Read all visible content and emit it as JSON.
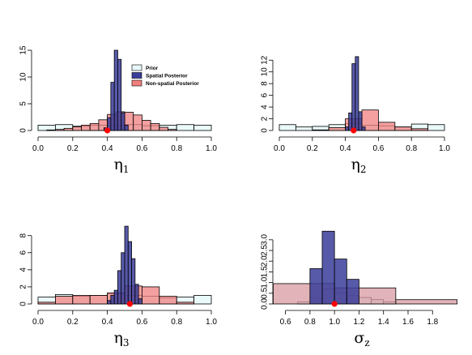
{
  "colors": {
    "prior": "#e8f8fa",
    "spatial": "#3a3d9a",
    "nonspatial": "#f28080",
    "nonspatial_sz": "#d89aa0",
    "overlap": "#8a2a55",
    "truth": "#ff0000"
  },
  "legend": {
    "entries": [
      {
        "key": "prior",
        "label": "Prior"
      },
      {
        "key": "spatial",
        "label": "Spatial Posterior"
      },
      {
        "key": "nonspatial",
        "label": "Non-spatial Posterior"
      }
    ]
  },
  "chart_data": [
    {
      "type": "histogram",
      "xlabel_main": "η",
      "xlabel_sub": "1",
      "xlim": [
        0,
        1
      ],
      "ylim": [
        0,
        15
      ],
      "xticks": [
        0.0,
        0.2,
        0.4,
        0.6,
        0.8,
        1.0
      ],
      "xtick_labels": [
        "0.0",
        "0.2",
        "0.4",
        "0.6",
        "0.8",
        "1.0"
      ],
      "yticks": [
        0,
        5,
        10,
        15
      ],
      "ytick_labels": [
        "0",
        "5",
        "10",
        "15"
      ],
      "legend": true,
      "true_value": 0.4,
      "prior": {
        "breaks": [
          0,
          0.1,
          0.2,
          0.3,
          0.4,
          0.5,
          0.6,
          0.7,
          0.8,
          0.9,
          1.0
        ],
        "heights": [
          1.0,
          1.1,
          0.8,
          1.0,
          0.9,
          1.1,
          0.9,
          1.0,
          1.1,
          1.0
        ]
      },
      "nonspatial": {
        "breaks": [
          0.05,
          0.1,
          0.15,
          0.2,
          0.25,
          0.3,
          0.35,
          0.4,
          0.45,
          0.5,
          0.55,
          0.6,
          0.65,
          0.7,
          0.75,
          0.8
        ],
        "heights": [
          0.1,
          0.2,
          0.4,
          0.7,
          1.0,
          1.3,
          2.0,
          3.0,
          3.5,
          3.4,
          2.9,
          1.9,
          1.3,
          0.6,
          0.2
        ]
      },
      "spatial": {
        "breaks": [
          0.38,
          0.4,
          0.42,
          0.44,
          0.46,
          0.48,
          0.5,
          0.52
        ],
        "heights": [
          0.5,
          2.4,
          9.0,
          15.0,
          13.3,
          3.3,
          1.0
        ]
      }
    },
    {
      "type": "histogram",
      "xlabel_main": "η",
      "xlabel_sub": "2",
      "xlim": [
        0,
        1
      ],
      "ylim": [
        0,
        13
      ],
      "xticks": [
        0.0,
        0.2,
        0.4,
        0.6,
        0.8,
        1.0
      ],
      "xtick_labels": [
        "0.0",
        "0.2",
        "0.4",
        "0.6",
        "0.8",
        "1.0"
      ],
      "yticks": [
        0,
        2,
        4,
        6,
        8,
        10,
        12
      ],
      "ytick_labels": [
        "0",
        "2",
        "4",
        "6",
        "8",
        "10",
        "12"
      ],
      "legend": false,
      "true_value": 0.45,
      "prior": {
        "breaks": [
          0,
          0.1,
          0.2,
          0.3,
          0.4,
          0.5,
          0.6,
          0.7,
          0.8,
          0.9,
          1.0
        ],
        "heights": [
          1.0,
          0.6,
          0.7,
          1.0,
          1.2,
          0.9,
          0.8,
          0.6,
          1.1,
          1.0
        ]
      },
      "nonspatial": {
        "breaks": [
          0.2,
          0.3,
          0.4,
          0.5,
          0.6,
          0.7,
          0.8,
          0.9
        ],
        "heights": [
          0.1,
          0.5,
          2.0,
          3.5,
          1.4,
          0.6,
          0.3
        ]
      },
      "spatial": {
        "breaks": [
          0.4,
          0.42,
          0.44,
          0.46,
          0.48,
          0.5,
          0.52
        ],
        "heights": [
          0.6,
          3.0,
          11.4,
          12.6,
          3.2,
          0.6
        ]
      }
    },
    {
      "type": "histogram",
      "xlabel_main": "η",
      "xlabel_sub": "3",
      "xlim": [
        0,
        1
      ],
      "ylim": [
        0,
        9.3
      ],
      "xticks": [
        0.0,
        0.2,
        0.4,
        0.6,
        0.8,
        1.0
      ],
      "xtick_labels": [
        "0.0",
        "0.2",
        "0.4",
        "0.6",
        "0.8",
        "1.0"
      ],
      "yticks": [
        0,
        2,
        4,
        6,
        8
      ],
      "ytick_labels": [
        "0",
        "2",
        "4",
        "6",
        "8"
      ],
      "legend": false,
      "true_value": 0.53,
      "prior": {
        "breaks": [
          0,
          0.1,
          0.2,
          0.3,
          0.4,
          0.5,
          0.6,
          0.7,
          0.8,
          0.9,
          1.0
        ],
        "heights": [
          0.8,
          1.1,
          0.9,
          1.0,
          1.2,
          1.0,
          0.9,
          0.7,
          0.8,
          1.0
        ]
      },
      "nonspatial": {
        "breaks": [
          0.0,
          0.1,
          0.2,
          0.3,
          0.4,
          0.5,
          0.6,
          0.7,
          0.8,
          0.9
        ],
        "heights": [
          0.2,
          0.9,
          1.0,
          1.0,
          1.3,
          2.1,
          2.0,
          0.9,
          0.2
        ]
      },
      "spatial": {
        "breaks": [
          0.4,
          0.42,
          0.44,
          0.46,
          0.48,
          0.5,
          0.52,
          0.54,
          0.56,
          0.58,
          0.6
        ],
        "heights": [
          0.4,
          1.0,
          1.6,
          3.9,
          6.0,
          9.1,
          7.3,
          5.3,
          2.3,
          0.6
        ]
      }
    },
    {
      "type": "histogram",
      "xlabel_main": "σ",
      "xlabel_sub": "z",
      "xlim": [
        0.55,
        1.95
      ],
      "ylim": [
        0,
        3.6
      ],
      "xticks": [
        0.6,
        0.8,
        1.0,
        1.2,
        1.4,
        1.6,
        1.8
      ],
      "xtick_labels": [
        "0.6",
        "0.8",
        "1.0",
        "1.2",
        "1.4",
        "1.6",
        "1.8"
      ],
      "yticks": [
        0,
        0.5,
        1.0,
        1.5,
        2.0,
        2.5,
        3.0
      ],
      "ytick_labels": [
        "0.0",
        "0.5",
        "1.0",
        "1.5",
        "2.0",
        "2.5",
        "3.0"
      ],
      "legend": false,
      "true_value": 1.0,
      "prior": {
        "breaks": [
          0.7,
          0.8,
          0.9,
          1.0,
          1.1,
          1.2,
          1.3,
          1.4,
          1.5
        ],
        "heights": [
          0.1,
          0.3,
          0.7,
          0.5,
          0.4,
          0.3,
          0.2,
          0.1
        ]
      },
      "nonspatial": {
        "breaks": [
          0.5,
          1.0,
          1.5,
          2.0
        ],
        "heights": [
          0.95,
          0.75,
          0.2
        ]
      },
      "spatial": {
        "breaks": [
          0.8,
          0.9,
          1.0,
          1.1,
          1.2
        ],
        "heights": [
          1.65,
          3.4,
          2.1,
          1.15
        ]
      }
    }
  ]
}
